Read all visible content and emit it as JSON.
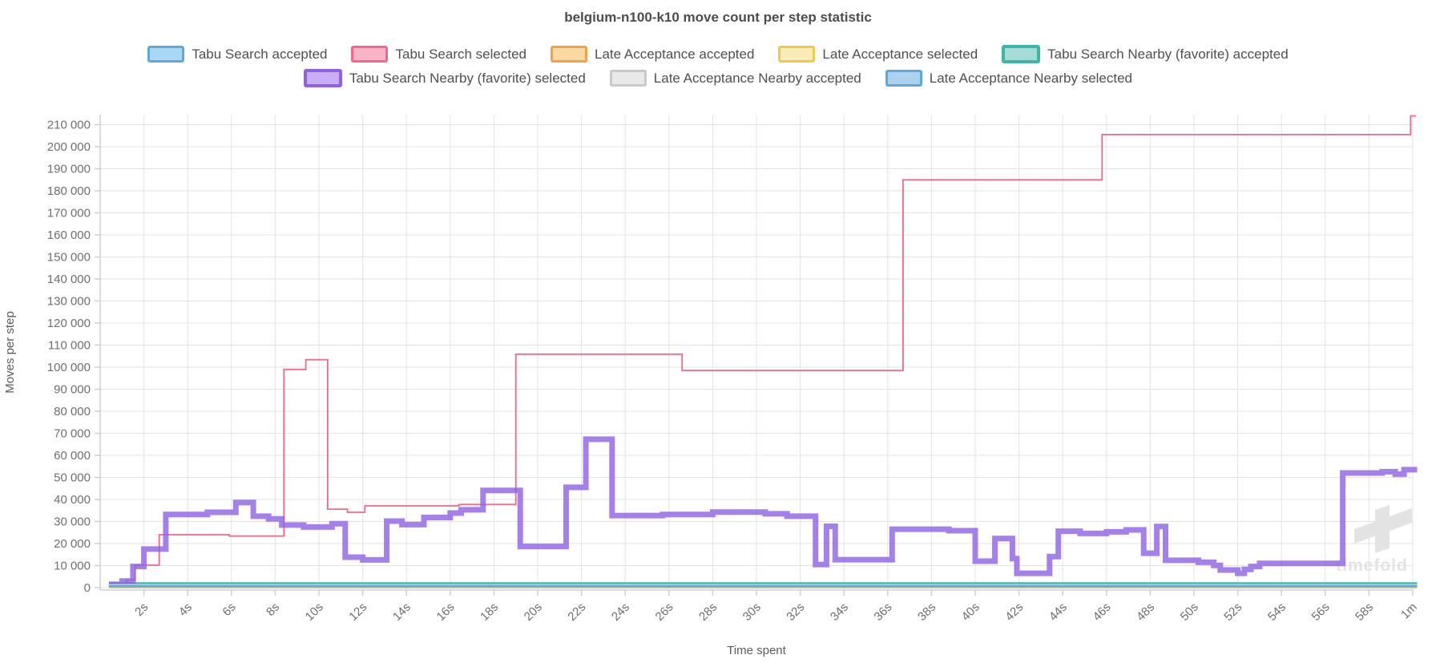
{
  "title": "belgium-n100-k10 move count per step statistic",
  "watermark": {
    "text": "timefold",
    "color": "#e3e3e3"
  },
  "legend": [
    {
      "row": 1,
      "label": "Tabu Search accepted",
      "fill": "#aad7f2",
      "border": "#5fa8dc",
      "thick": false
    },
    {
      "row": 1,
      "label": "Tabu Search selected",
      "fill": "#f9b4c8",
      "border": "#f2688c",
      "thick": false
    },
    {
      "row": 1,
      "label": "Late Acceptance accepted",
      "fill": "#fbd9a2",
      "border": "#f2a245",
      "thick": false
    },
    {
      "row": 1,
      "label": "Late Acceptance selected",
      "fill": "#faecb8",
      "border": "#edc94e",
      "thick": false
    },
    {
      "row": 1,
      "label": "Tabu Search Nearby (favorite) accepted",
      "fill": "#a5dcd5",
      "border": "#3eb5a9",
      "thick": true
    },
    {
      "row": 2,
      "label": "Tabu Search Nearby (favorite) selected",
      "fill": "#c9aef5",
      "border": "#8d60e6",
      "thick": true
    },
    {
      "row": 2,
      "label": "Late Acceptance Nearby accepted",
      "fill": "#e9e9e9",
      "border": "#c9c9c9",
      "thick": false
    },
    {
      "row": 2,
      "label": "Late Acceptance Nearby selected",
      "fill": "#abd3ef",
      "border": "#5fa8dc",
      "thick": false
    }
  ],
  "chart_data": {
    "type": "line",
    "step": true,
    "title": "belgium-n100-k10 move count per step statistic",
    "xlabel": "Time spent",
    "ylabel": "Moves per step",
    "xlim_seconds": [
      0,
      60.3
    ],
    "ylim": [
      0,
      214500
    ],
    "grid": true,
    "x_ticks": [
      {
        "t": 2,
        "label": "2s"
      },
      {
        "t": 4,
        "label": "4s"
      },
      {
        "t": 6,
        "label": "6s"
      },
      {
        "t": 8,
        "label": "8s"
      },
      {
        "t": 10,
        "label": "10s"
      },
      {
        "t": 12,
        "label": "12s"
      },
      {
        "t": 14,
        "label": "14s"
      },
      {
        "t": 16,
        "label": "16s"
      },
      {
        "t": 18,
        "label": "18s"
      },
      {
        "t": 20,
        "label": "20s"
      },
      {
        "t": 22,
        "label": "22s"
      },
      {
        "t": 24,
        "label": "24s"
      },
      {
        "t": 26,
        "label": "26s"
      },
      {
        "t": 28,
        "label": "28s"
      },
      {
        "t": 30,
        "label": "30s"
      },
      {
        "t": 32,
        "label": "32s"
      },
      {
        "t": 34,
        "label": "34s"
      },
      {
        "t": 36,
        "label": "36s"
      },
      {
        "t": 38,
        "label": "38s"
      },
      {
        "t": 40,
        "label": "40s"
      },
      {
        "t": 42,
        "label": "42s"
      },
      {
        "t": 44,
        "label": "44s"
      },
      {
        "t": 46,
        "label": "46s"
      },
      {
        "t": 48,
        "label": "48s"
      },
      {
        "t": 50,
        "label": "50s"
      },
      {
        "t": 52,
        "label": "52s"
      },
      {
        "t": 54,
        "label": "54s"
      },
      {
        "t": 56,
        "label": "56s"
      },
      {
        "t": 58,
        "label": "58s"
      },
      {
        "t": 60,
        "label": "1m"
      }
    ],
    "y_ticks": [
      {
        "v": 0,
        "label": "0"
      },
      {
        "v": 10000,
        "label": "10 000"
      },
      {
        "v": 20000,
        "label": "20 000"
      },
      {
        "v": 30000,
        "label": "30 000"
      },
      {
        "v": 40000,
        "label": "40 000"
      },
      {
        "v": 50000,
        "label": "50 000"
      },
      {
        "v": 60000,
        "label": "60 000"
      },
      {
        "v": 70000,
        "label": "70 000"
      },
      {
        "v": 80000,
        "label": "80 000"
      },
      {
        "v": 90000,
        "label": "90 000"
      },
      {
        "v": 100000,
        "label": "100 000"
      },
      {
        "v": 110000,
        "label": "110 000"
      },
      {
        "v": 120000,
        "label": "120 000"
      },
      {
        "v": 130000,
        "label": "130 000"
      },
      {
        "v": 140000,
        "label": "140 000"
      },
      {
        "v": 150000,
        "label": "150 000"
      },
      {
        "v": 160000,
        "label": "160 000"
      },
      {
        "v": 170000,
        "label": "170 000"
      },
      {
        "v": 180000,
        "label": "180 000"
      },
      {
        "v": 190000,
        "label": "190 000"
      },
      {
        "v": 200000,
        "label": "200 000"
      },
      {
        "v": 210000,
        "label": "210 000"
      }
    ],
    "series": [
      {
        "id": "tabu-search-accepted",
        "name": "Tabu Search accepted",
        "color": "#5fa8dc",
        "width": 3,
        "opacity": 1,
        "points": [
          [
            0.4,
            1300
          ],
          [
            60.2,
            1300
          ]
        ]
      },
      {
        "id": "tabu-search-selected",
        "name": "Tabu Search selected",
        "color": "#f2688c",
        "width": 1.8,
        "opacity": 1,
        "points": [
          [
            0.4,
            1000
          ],
          [
            0.7,
            1600
          ],
          [
            1.2,
            3500
          ],
          [
            1.6,
            10200
          ],
          [
            2.7,
            24000
          ],
          [
            5.9,
            23400
          ],
          [
            8.4,
            99000
          ],
          [
            9.4,
            103400
          ],
          [
            10.4,
            35600
          ],
          [
            11.3,
            34200
          ],
          [
            12.1,
            37100
          ],
          [
            16.4,
            37700
          ],
          [
            19.0,
            105900
          ],
          [
            26.6,
            98500
          ],
          [
            36.7,
            185000
          ],
          [
            45.8,
            205500
          ],
          [
            59.9,
            214000
          ],
          [
            60.15,
            214000
          ]
        ]
      },
      {
        "id": "late-acceptance-accepted",
        "name": "Late Acceptance accepted",
        "color": "#f2a245",
        "width": 2.5,
        "opacity": 1,
        "points": [
          [
            0.4,
            150
          ],
          [
            60.2,
            150
          ]
        ]
      },
      {
        "id": "late-acceptance-selected",
        "name": "Late Acceptance selected",
        "color": "#edc94e",
        "width": 2,
        "opacity": 1,
        "points": [
          [
            0.4,
            150
          ],
          [
            60.2,
            150
          ]
        ]
      },
      {
        "id": "tabu-search-nearby-accepted",
        "name": "Tabu Search Nearby (favorite) accepted",
        "color": "#3eb5a9",
        "width": 5,
        "opacity": 0.9,
        "points": [
          [
            0.4,
            1600
          ],
          [
            60.2,
            1600
          ]
        ]
      },
      {
        "id": "tabu-search-nearby-selected",
        "name": "Tabu Search Nearby (favorite) selected",
        "color": "#8d60e6",
        "width": 7,
        "opacity": 0.8,
        "points": [
          [
            0.4,
            1500
          ],
          [
            1.0,
            3000
          ],
          [
            1.5,
            9600
          ],
          [
            2.0,
            17500
          ],
          [
            3.0,
            33200
          ],
          [
            4.9,
            34200
          ],
          [
            6.2,
            38600
          ],
          [
            7.0,
            32400
          ],
          [
            7.7,
            31200
          ],
          [
            8.3,
            28400
          ],
          [
            9.3,
            27500
          ],
          [
            10.6,
            29000
          ],
          [
            11.2,
            13800
          ],
          [
            12.0,
            12600
          ],
          [
            13.1,
            30200
          ],
          [
            13.8,
            28600
          ],
          [
            14.8,
            31800
          ],
          [
            16.0,
            33800
          ],
          [
            16.5,
            35300
          ],
          [
            17.5,
            44100
          ],
          [
            19.2,
            18700
          ],
          [
            21.3,
            45500
          ],
          [
            22.2,
            67300
          ],
          [
            23.4,
            32700
          ],
          [
            25.7,
            33200
          ],
          [
            28.0,
            34300
          ],
          [
            30.4,
            33500
          ],
          [
            31.4,
            32400
          ],
          [
            32.7,
            10500
          ],
          [
            33.2,
            27800
          ],
          [
            33.6,
            12700
          ],
          [
            36.2,
            26500
          ],
          [
            38.8,
            25800
          ],
          [
            40.0,
            12000
          ],
          [
            40.9,
            22300
          ],
          [
            41.7,
            13200
          ],
          [
            41.9,
            6500
          ],
          [
            43.4,
            14100
          ],
          [
            43.8,
            25600
          ],
          [
            44.8,
            24600
          ],
          [
            46.0,
            25300
          ],
          [
            46.9,
            26200
          ],
          [
            47.7,
            15600
          ],
          [
            48.3,
            27700
          ],
          [
            48.7,
            12400
          ],
          [
            50.2,
            11500
          ],
          [
            50.9,
            10100
          ],
          [
            51.2,
            8000
          ],
          [
            52.0,
            6500
          ],
          [
            52.3,
            8300
          ],
          [
            52.6,
            9600
          ],
          [
            53.0,
            11000
          ],
          [
            56.8,
            52000
          ],
          [
            58.6,
            52600
          ],
          [
            59.2,
            51500
          ],
          [
            59.6,
            53500
          ],
          [
            60.2,
            53500
          ]
        ]
      },
      {
        "id": "late-acceptance-nearby-accepted",
        "name": "Late Acceptance Nearby accepted",
        "color": "#c9c9c9",
        "width": 3,
        "opacity": 1,
        "points": [
          [
            0.4,
            1100
          ],
          [
            60.2,
            1100
          ]
        ]
      },
      {
        "id": "late-acceptance-nearby-selected",
        "name": "Late Acceptance Nearby selected",
        "color": "#5fa8dc",
        "width": 2.5,
        "opacity": 1,
        "points": [
          [
            0.4,
            650
          ],
          [
            60.2,
            650
          ]
        ]
      }
    ]
  }
}
